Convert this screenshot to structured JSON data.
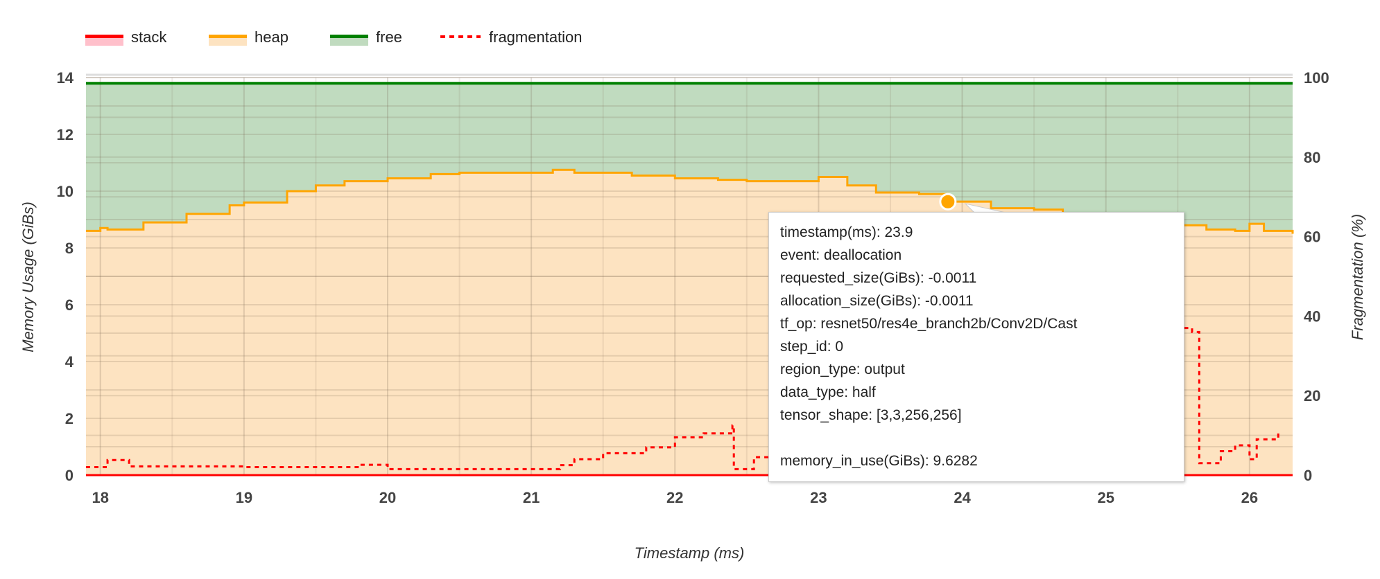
{
  "chart_data": {
    "type": "area",
    "xlabel": "Timestamp (ms)",
    "ylabel": "Memory Usage (GiBs)",
    "y2label": "Fragmentation (%)",
    "xlim": [
      17.9,
      26.3
    ],
    "ylim": [
      0,
      14
    ],
    "y2lim": [
      0,
      100
    ],
    "x_ticks": [
      "18",
      "19",
      "20",
      "21",
      "22",
      "23",
      "24",
      "25",
      "26"
    ],
    "y_ticks": [
      "0",
      "2",
      "4",
      "6",
      "8",
      "10",
      "12",
      "14"
    ],
    "y2_ticks": [
      "0",
      "20",
      "40",
      "60",
      "80",
      "100"
    ],
    "grid": true,
    "legend_position": "top-left",
    "legend": [
      {
        "name": "stack",
        "color": "#ff0000",
        "fill": "#ffc0cb"
      },
      {
        "name": "heap",
        "color": "#ffa500",
        "fill": "#fde3c1"
      },
      {
        "name": "free",
        "color": "#008000",
        "fill": "#c0dbbf"
      },
      {
        "name": "fragmentation",
        "color": "#ff0000",
        "dashed": true
      }
    ],
    "series": [
      {
        "name": "stack",
        "axis": "left",
        "x": [
          17.9,
          26.3
        ],
        "values": [
          0.0,
          0.0
        ]
      },
      {
        "name": "heap",
        "axis": "left",
        "x": [
          17.9,
          18.0,
          18.05,
          18.3,
          18.6,
          18.9,
          19.0,
          19.3,
          19.5,
          19.7,
          20.0,
          20.3,
          20.5,
          21.0,
          21.15,
          21.3,
          21.7,
          22.0,
          22.3,
          22.5,
          22.8,
          23.0,
          23.2,
          23.4,
          23.7,
          23.9,
          24.2,
          24.5,
          24.7,
          24.9,
          25.2,
          25.5,
          25.7,
          25.9,
          26.0,
          26.1,
          26.3
        ],
        "values": [
          8.6,
          8.7,
          8.65,
          8.9,
          9.2,
          9.5,
          9.6,
          10.0,
          10.2,
          10.35,
          10.45,
          10.6,
          10.65,
          10.65,
          10.75,
          10.65,
          10.55,
          10.45,
          10.4,
          10.35,
          10.35,
          10.5,
          10.2,
          9.95,
          9.9,
          9.63,
          9.4,
          9.35,
          9.2,
          9.1,
          8.9,
          8.8,
          8.65,
          8.6,
          8.85,
          8.6,
          8.5
        ]
      },
      {
        "name": "free",
        "axis": "left",
        "x": [
          17.9,
          26.3
        ],
        "values": [
          13.8,
          13.8
        ]
      },
      {
        "name": "fragmentation",
        "axis": "right",
        "x": [
          17.9,
          18.05,
          18.2,
          19.0,
          19.7,
          19.8,
          20.0,
          21.0,
          21.2,
          21.3,
          21.5,
          21.8,
          22.0,
          22.2,
          22.4,
          22.41,
          22.55,
          22.8,
          23.2,
          23.6,
          24.0,
          24.4,
          24.8,
          25.0,
          25.3,
          25.6,
          25.65,
          25.8,
          25.9,
          26.0,
          26.05,
          26.2
        ],
        "values": [
          2,
          3.8,
          2.2,
          2,
          2,
          2.6,
          1.5,
          1.5,
          2.5,
          4,
          5.5,
          7,
          9.5,
          10.5,
          12.5,
          1.5,
          4.5,
          7,
          11,
          15,
          20,
          26,
          32,
          35,
          37,
          36,
          3,
          6,
          7.5,
          4,
          9,
          10.5
        ]
      }
    ],
    "highlight_point": {
      "series": "heap",
      "x": 23.9,
      "y": 9.6282
    }
  },
  "tooltip": {
    "lines": [
      "timestamp(ms): 23.9",
      "event: deallocation",
      "requested_size(GiBs): -0.0011",
      "allocation_size(GiBs): -0.0011",
      "tf_op: resnet50/res4e_branch2b/Conv2D/Cast",
      "step_id: 0",
      "region_type: output",
      "data_type: half",
      "tensor_shape: [3,3,256,256]",
      "",
      "memory_in_use(GiBs): 9.6282"
    ]
  }
}
